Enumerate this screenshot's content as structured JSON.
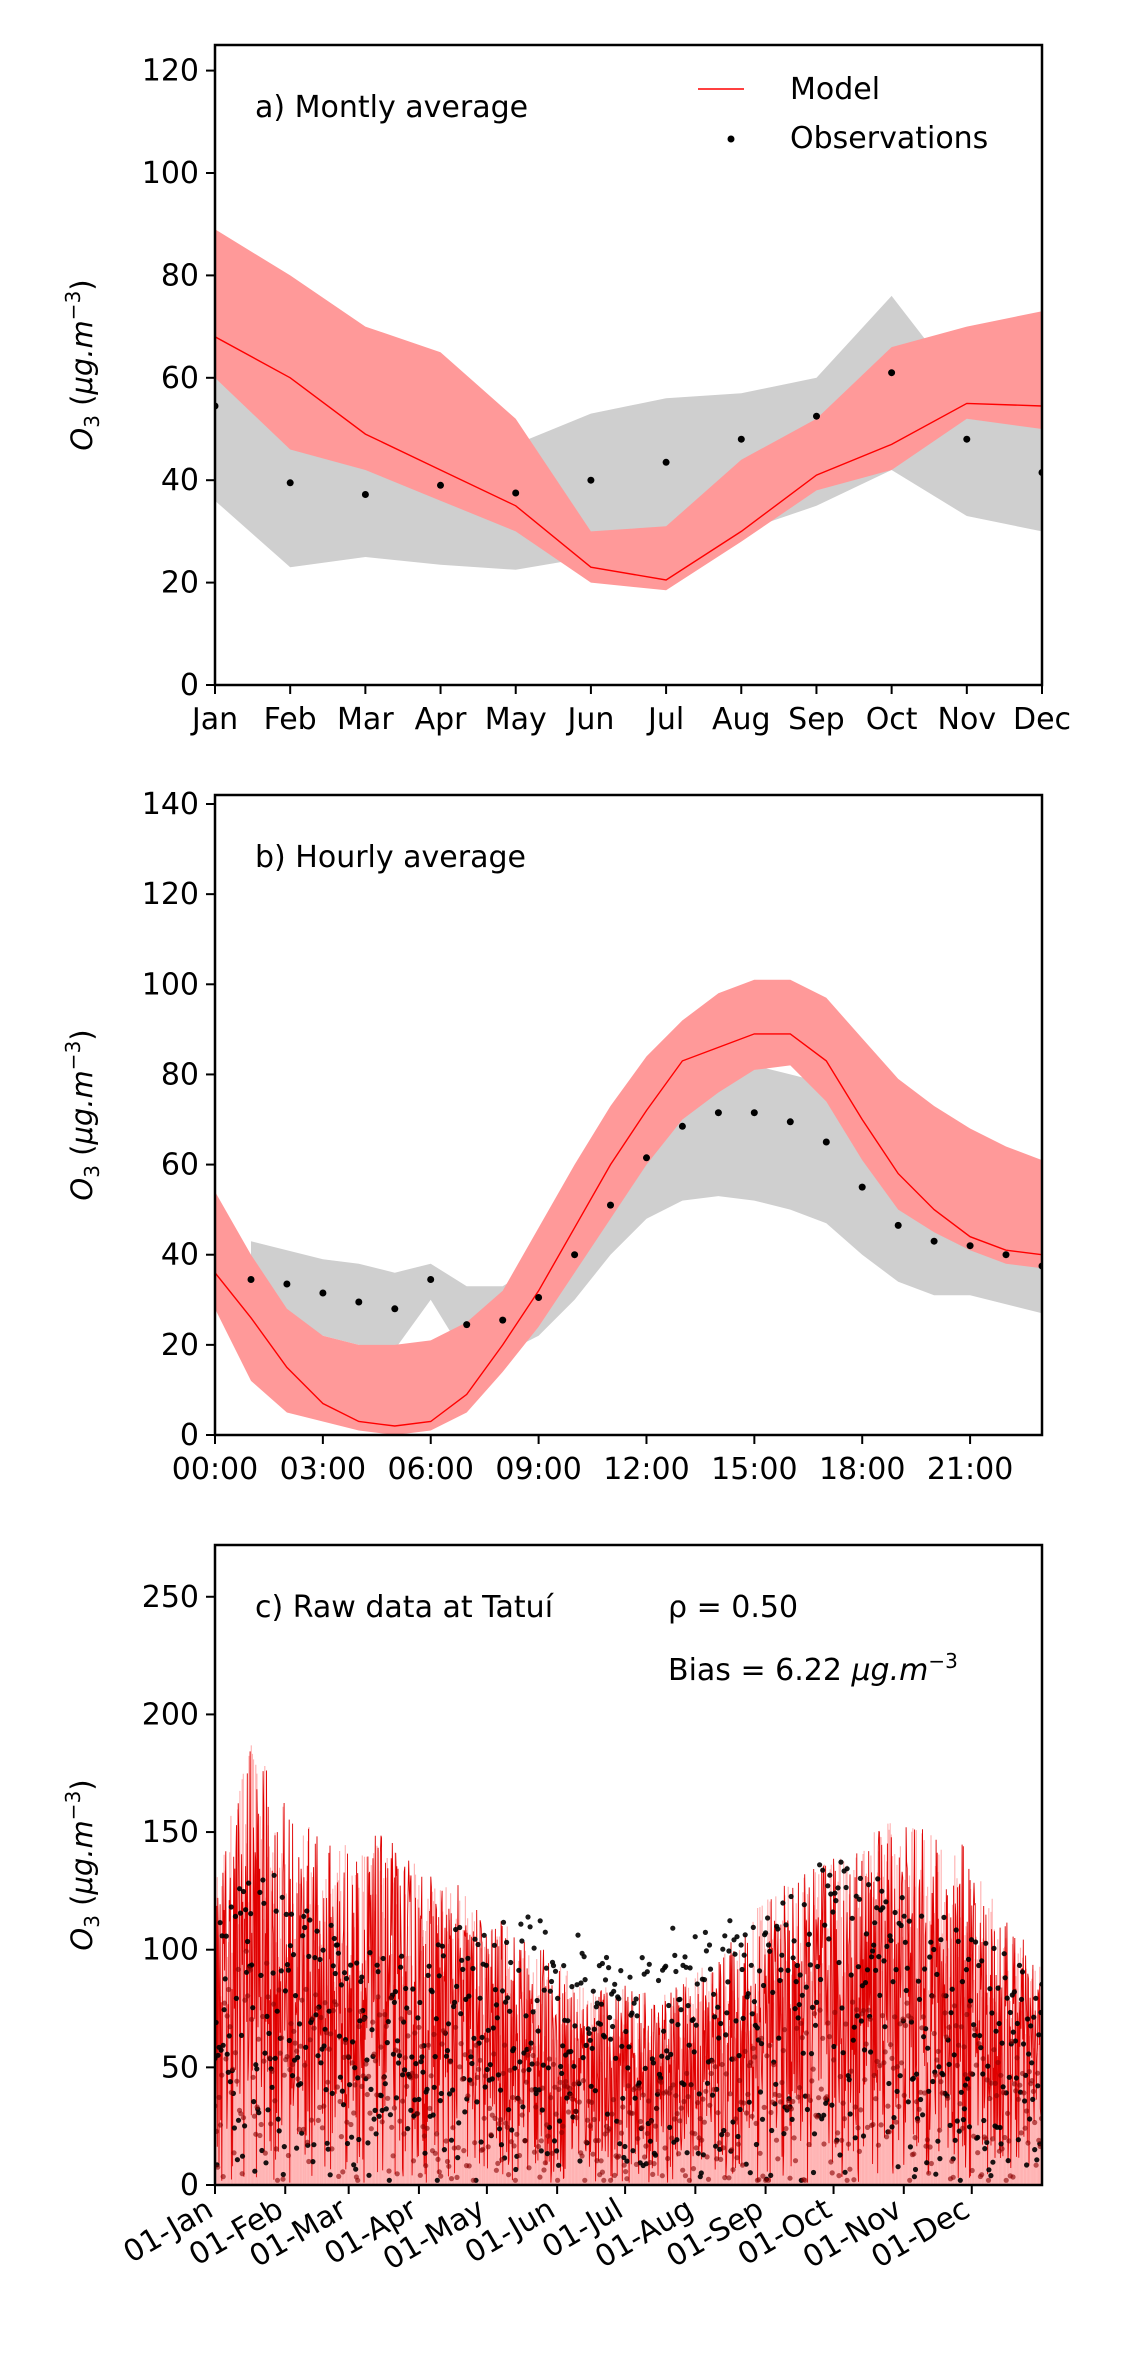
{
  "chart_data": [
    {
      "id": "monthly",
      "type": "line",
      "annotation": "a) Montly average",
      "ylabel": "O3 (μg.m−3)",
      "categories": [
        "Jan",
        "Feb",
        "Mar",
        "Apr",
        "May",
        "Jun",
        "Jul",
        "Aug",
        "Sep",
        "Oct",
        "Nov",
        "Dec"
      ],
      "x": [
        0,
        1,
        2,
        3,
        4,
        5,
        6,
        7,
        8,
        9,
        10,
        11
      ],
      "ylim": [
        0,
        125
      ],
      "yticks": [
        0,
        20,
        40,
        60,
        80,
        100,
        120
      ],
      "legend": {
        "placement": "top-right",
        "items": [
          "Model",
          "Observations"
        ]
      },
      "series": [
        {
          "name": "Model",
          "kind": "line",
          "color": "#ff0000",
          "values": [
            68,
            60,
            49,
            42,
            35,
            23,
            20.5,
            30,
            41,
            47,
            55,
            54.5
          ],
          "band_lower": [
            60,
            46,
            42,
            36,
            30,
            20,
            18.5,
            28,
            38,
            42,
            52,
            50
          ],
          "band_upper": [
            89,
            80,
            70,
            65,
            52,
            30,
            31,
            44,
            52,
            66,
            70,
            73
          ],
          "band_color": "#ff9999"
        },
        {
          "name": "Observations",
          "kind": "scatter",
          "color": "#000000",
          "values": [
            54.5,
            39.5,
            37.2,
            39,
            37.5,
            40,
            43.5,
            48,
            52.5,
            61,
            48,
            41.5
          ],
          "band_lower": [
            36,
            23,
            25,
            23.5,
            22.5,
            25,
            27,
            30,
            35,
            42,
            33,
            30
          ],
          "band_upper": [
            68,
            49,
            48,
            49,
            47,
            53,
            56,
            57,
            60,
            76,
            57,
            57
          ],
          "band_color": "#cfcfcf"
        }
      ]
    },
    {
      "id": "hourly",
      "type": "line",
      "annotation": "b) Hourly average",
      "ylabel": "O3 (μg.m−3)",
      "xticks": [
        0,
        3,
        6,
        9,
        12,
        15,
        18,
        21
      ],
      "xtick_labels": [
        "00:00",
        "03:00",
        "06:00",
        "09:00",
        "12:00",
        "15:00",
        "18:00",
        "21:00"
      ],
      "xlim": [
        0,
        23
      ],
      "ylim": [
        0,
        142
      ],
      "yticks": [
        0,
        20,
        40,
        60,
        80,
        100,
        120,
        140
      ],
      "series": [
        {
          "name": "Model",
          "kind": "line",
          "color": "#ff0000",
          "x": [
            0,
            1,
            2,
            3,
            4,
            5,
            6,
            7,
            8,
            9,
            10,
            11,
            12,
            13,
            14,
            15,
            16,
            17,
            18,
            19,
            20,
            21,
            22,
            23
          ],
          "values": [
            36,
            26,
            15,
            7,
            3,
            2,
            3,
            9,
            20,
            32,
            46,
            60,
            72,
            83,
            86,
            89,
            89,
            83,
            70,
            58,
            50,
            44,
            41,
            40
          ],
          "band_lower": [
            28,
            12,
            5,
            3,
            1,
            0,
            1,
            5,
            14,
            24,
            36,
            48,
            60,
            70,
            76,
            81,
            82,
            74,
            61,
            50,
            45,
            41,
            38,
            37
          ],
          "band_upper": [
            54,
            40,
            28,
            22,
            20,
            20,
            21,
            25,
            32,
            46,
            60,
            73,
            84,
            92,
            98,
            101,
            101,
            97,
            88,
            79,
            73,
            68,
            64,
            61
          ],
          "band_color": "#ff9999"
        },
        {
          "name": "Observations",
          "kind": "scatter",
          "color": "#000000",
          "x": [
            1,
            2,
            3,
            4,
            5,
            6,
            7,
            8,
            9,
            10,
            11,
            12,
            13,
            14,
            15,
            16,
            17,
            18,
            19,
            20,
            21,
            22,
            23
          ],
          "values": [
            34.5,
            33.5,
            31.5,
            29.5,
            28,
            34.5,
            24.5,
            25.5,
            30.5,
            40,
            51,
            61.5,
            68.5,
            71.5,
            71.5,
            69.5,
            65,
            55,
            46.5,
            43,
            42,
            40,
            37.5
          ],
          "band_lower": [
            25,
            25,
            22,
            20,
            19,
            30,
            17,
            18,
            22,
            30,
            40,
            48,
            52,
            53,
            52,
            50,
            47,
            40,
            34,
            31,
            31,
            29,
            27
          ],
          "band_upper": [
            43,
            41,
            39,
            38,
            36,
            38,
            33,
            33,
            38,
            50,
            62,
            74,
            82,
            83,
            82,
            80,
            78,
            65,
            56,
            53,
            51,
            49,
            47
          ],
          "band_color": "#cfcfcf"
        }
      ]
    },
    {
      "id": "raw",
      "type": "line",
      "annotation": "c) Raw data at Tatuí",
      "rho": "ρ = 0.50",
      "bias_text": "Bias = 6.22",
      "bias_unit": "μg.m−3",
      "ylabel": "O3 (μg.m−3)",
      "xtick_days": [
        0,
        31,
        59,
        90,
        120,
        151,
        181,
        212,
        243,
        273,
        304,
        334
      ],
      "xtick_labels": [
        "01-Jan",
        "01-Feb",
        "01-Mar",
        "01-Apr",
        "01-May",
        "01-Jun",
        "01-Jul",
        "01-Aug",
        "01-Sep",
        "01-Oct",
        "01-Nov",
        "01-Dec"
      ],
      "xlim": [
        0,
        365
      ],
      "ylim": [
        0,
        272
      ],
      "yticks": [
        0,
        50,
        100,
        150,
        200,
        250
      ],
      "series": [
        {
          "name": "Model",
          "kind": "line",
          "color": "#ff0000",
          "envelope_day": [
            0,
            15,
            30,
            45,
            60,
            75,
            90,
            105,
            120,
            135,
            150,
            165,
            180,
            195,
            210,
            225,
            240,
            255,
            270,
            285,
            300,
            315,
            330,
            345,
            365
          ],
          "envelope_peak": [
            130,
            190,
            165,
            150,
            145,
            150,
            135,
            130,
            115,
            110,
            95,
            85,
            85,
            80,
            90,
            100,
            120,
            130,
            140,
            145,
            160,
            150,
            145,
            120,
            95
          ]
        },
        {
          "name": "Observations",
          "kind": "scatter",
          "color": "#000000",
          "envelope_day": [
            0,
            15,
            30,
            45,
            60,
            75,
            90,
            105,
            120,
            135,
            150,
            165,
            180,
            195,
            210,
            225,
            240,
            255,
            270,
            285,
            300,
            315,
            330,
            345,
            365
          ],
          "envelope_peak": [
            110,
            140,
            130,
            115,
            105,
            100,
            95,
            110,
            110,
            115,
            115,
            110,
            90,
            105,
            120,
            115,
            110,
            125,
            140,
            135,
            130,
            120,
            115,
            100,
            90
          ]
        }
      ]
    }
  ]
}
